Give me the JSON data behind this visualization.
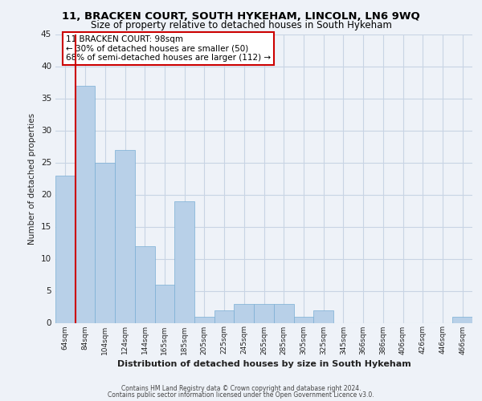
{
  "title1": "11, BRACKEN COURT, SOUTH HYKEHAM, LINCOLN, LN6 9WQ",
  "title2": "Size of property relative to detached houses in South Hykeham",
  "xlabel": "Distribution of detached houses by size in South Hykeham",
  "ylabel": "Number of detached properties",
  "categories": [
    "64sqm",
    "84sqm",
    "104sqm",
    "124sqm",
    "144sqm",
    "165sqm",
    "185sqm",
    "205sqm",
    "225sqm",
    "245sqm",
    "265sqm",
    "285sqm",
    "305sqm",
    "325sqm",
    "345sqm",
    "366sqm",
    "386sqm",
    "406sqm",
    "426sqm",
    "446sqm",
    "466sqm"
  ],
  "values": [
    23,
    37,
    25,
    27,
    12,
    6,
    19,
    1,
    2,
    3,
    3,
    3,
    1,
    2,
    0,
    0,
    0,
    0,
    0,
    0,
    1
  ],
  "bar_color": "#b8d0e8",
  "bar_edge_color": "#7aaed4",
  "highlight_bar_index": 1,
  "highlight_line_color": "#cc0000",
  "annotation_text": "11 BRACKEN COURT: 98sqm\n← 30% of detached houses are smaller (50)\n68% of semi-detached houses are larger (112) →",
  "annotation_box_edge_color": "#cc0000",
  "ylim": [
    0,
    45
  ],
  "yticks": [
    0,
    5,
    10,
    15,
    20,
    25,
    30,
    35,
    40,
    45
  ],
  "grid_color": "#c8d4e4",
  "background_color": "#eef2f8",
  "plot_bg_color": "#eef2f8",
  "footer1": "Contains HM Land Registry data © Crown copyright and database right 2024.",
  "footer2": "Contains public sector information licensed under the Open Government Licence v3.0.",
  "title1_fontsize": 9.5,
  "title2_fontsize": 8.5,
  "xlabel_fontsize": 8.0,
  "ylabel_fontsize": 7.5,
  "tick_fontsize": 6.5,
  "footer_fontsize": 5.5,
  "annotation_fontsize": 7.5
}
